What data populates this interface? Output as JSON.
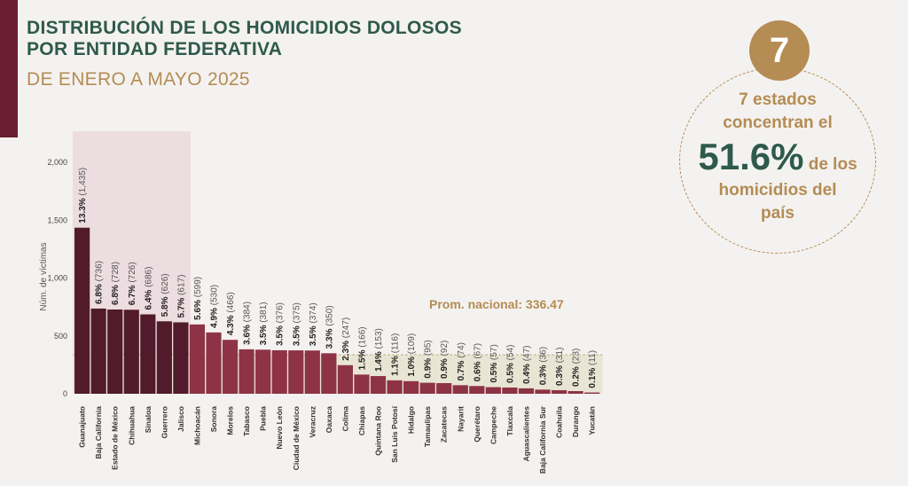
{
  "header": {
    "title_line1": "DISTRIBUCIÓN DE LOS HOMICIDIOS DOLOSOS",
    "title_line2": "POR ENTIDAD FEDERATIVA",
    "subtitle": "DE ENERO A MAYO 2025"
  },
  "callout": {
    "badge": "7",
    "line1": "7 estados",
    "line2": "concentran el",
    "big_value": "51.6%",
    "after_big": " de los",
    "line3": "homicidios del",
    "line4": "país"
  },
  "colors": {
    "title": "#2f5a4b",
    "subtitle": "#b48c54",
    "highlight_bar": "#521b2c",
    "regular_bar": "#8e3346",
    "highlight_band": "#ecdde1",
    "average_band": "#e9e5d4",
    "average_line": "#c9bd8c",
    "average_label": "#b48c54"
  },
  "chart_data": {
    "type": "bar",
    "ylabel": "Núm. de víctimas",
    "ylim": [
      0,
      1500
    ],
    "yticks": [
      0,
      500,
      1000,
      1500,
      2000
    ],
    "ytick_labels": [
      "0",
      "500",
      "1,000",
      "1,500",
      "2,000"
    ],
    "average": 336.47,
    "average_label": "Prom. nacional: 336.47",
    "highlight_count": 7,
    "categories": [
      "Guanajuato",
      "Baja California",
      "Estado de México",
      "Chihuahua",
      "Sinaloa",
      "Guerrero",
      "Jalisco",
      "Michoacán",
      "Sonora",
      "Morelos",
      "Tabasco",
      "Puebla",
      "Nuevo León",
      "Ciudad de México",
      "Veracruz",
      "Oaxaca",
      "Colima",
      "Chiapas",
      "Quintana Roo",
      "San Luis Potosí",
      "Hidalgo",
      "Tamaulipas",
      "Zacatecas",
      "Nayarit",
      "Querétaro",
      "Campeche",
      "Tlaxcala",
      "Aguascalientes",
      "Baja California Sur",
      "Coahuila",
      "Durango",
      "Yucatán"
    ],
    "values": [
      1435,
      736,
      728,
      726,
      686,
      626,
      617,
      599,
      530,
      466,
      384,
      381,
      376,
      375,
      374,
      350,
      247,
      166,
      153,
      116,
      109,
      95,
      92,
      74,
      67,
      57,
      54,
      47,
      36,
      31,
      23,
      11
    ],
    "percents": [
      "13.3%",
      "6.8%",
      "6.8%",
      "6.7%",
      "6.4%",
      "5.8%",
      "5.7%",
      "5.6%",
      "4.9%",
      "4.3%",
      "3.6%",
      "3.5%",
      "3.5%",
      "3.5%",
      "3.5%",
      "3.3%",
      "2.3%",
      "1.5%",
      "1.4%",
      "1.1%",
      "1.0%",
      "0.9%",
      "0.9%",
      "0.7%",
      "0.6%",
      "0.5%",
      "0.5%",
      "0.4%",
      "0.3%",
      "0.3%",
      "0.2%",
      "0.1%"
    ],
    "counts": [
      "(1,435)",
      "(736)",
      "(728)",
      "(726)",
      "(686)",
      "(626)",
      "(617)",
      "(599)",
      "(530)",
      "(466)",
      "(384)",
      "(381)",
      "(376)",
      "(375)",
      "(374)",
      "(350)",
      "(247)",
      "(166)",
      "(153)",
      "(116)",
      "(109)",
      "(95)",
      "(92)",
      "(74)",
      "(67)",
      "(57)",
      "(54)",
      "(47)",
      "(36)",
      "(31)",
      "(23)",
      "(11)"
    ]
  }
}
